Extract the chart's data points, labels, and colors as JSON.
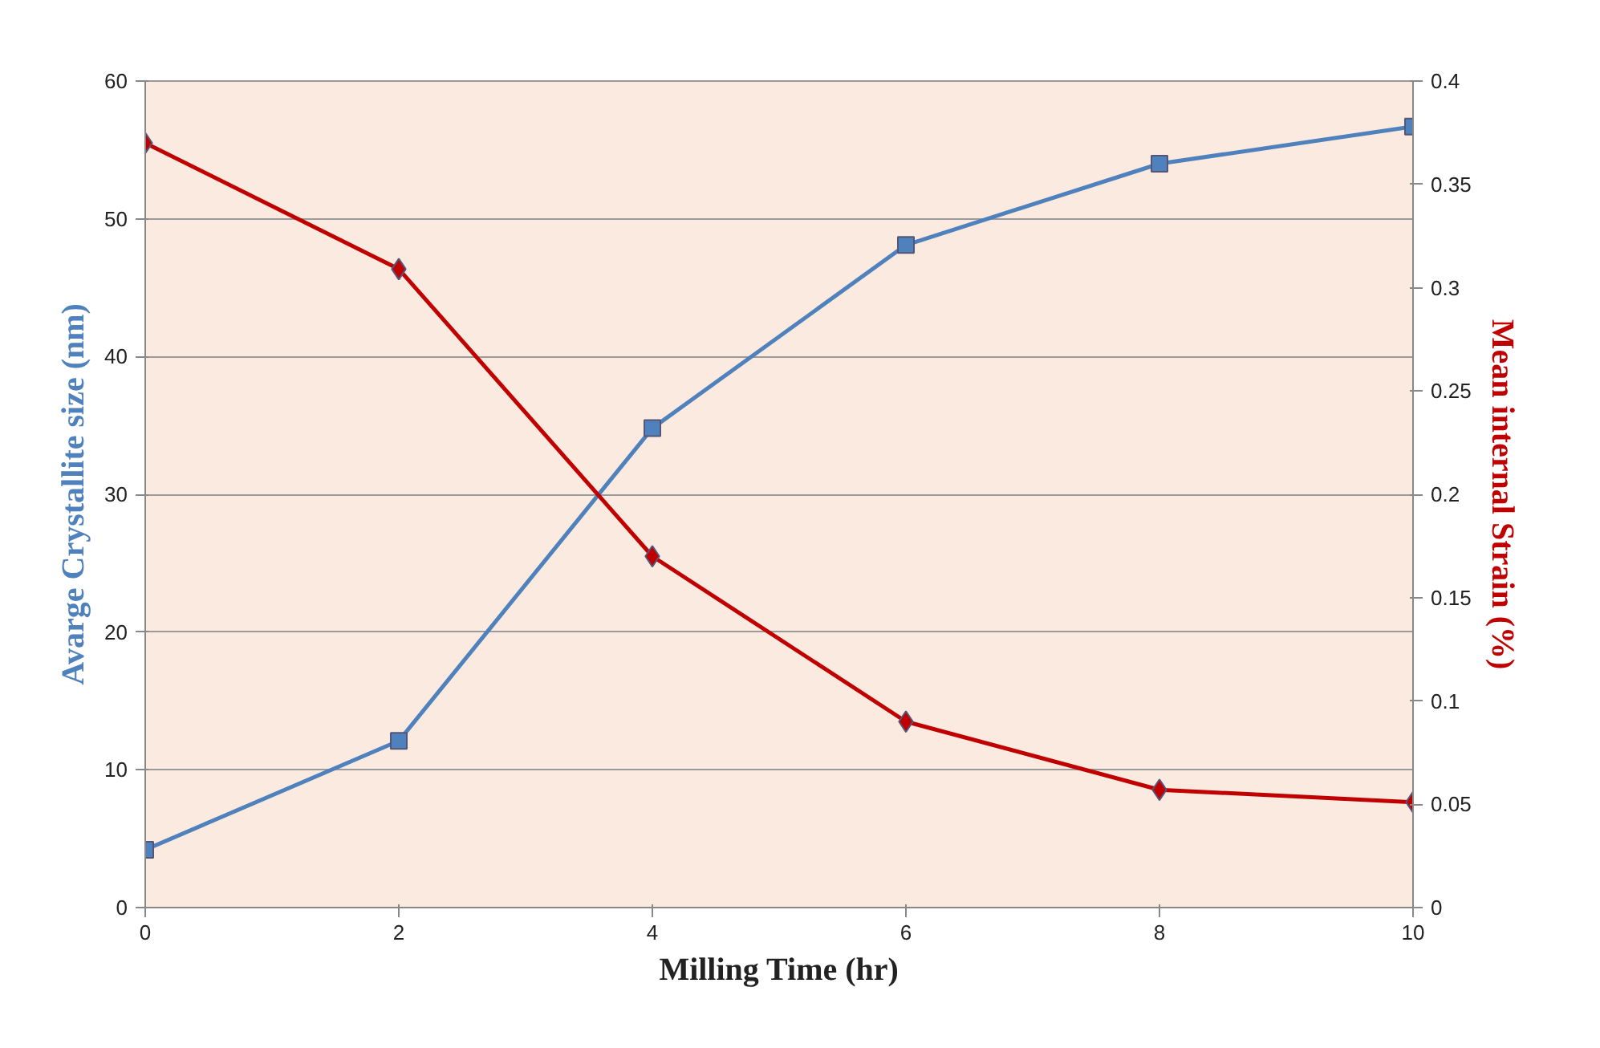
{
  "chart_data": {
    "type": "line",
    "xlabel": "Milling Time (hr)",
    "ylabel": "Avarge Crystallite size (nm)",
    "y2label": "Mean internal Strain (%)",
    "x": [
      0,
      2,
      4,
      6,
      8,
      10
    ],
    "series": [
      {
        "color": "#4f81bd",
        "marker": "square",
        "values": [
          4.2,
          12.1,
          34.8,
          48.1,
          54.0,
          56.7
        ]
      },
      {
        "color": "#c00000",
        "marker": "diamond",
        "axis": "y2",
        "values": [
          0.37,
          0.309,
          0.17,
          0.09,
          0.057,
          0.051
        ]
      }
    ],
    "xlim": [
      0,
      10
    ],
    "xticks": [
      0,
      2,
      4,
      6,
      8,
      10
    ],
    "ylim": [
      0,
      60
    ],
    "yticks": [
      0,
      10,
      20,
      30,
      40,
      50,
      60
    ],
    "y2lim": [
      0,
      0.4
    ],
    "y2ticks": [
      0,
      0.05,
      0.1,
      0.15,
      0.2,
      0.25,
      0.3,
      0.35,
      0.4
    ],
    "grid": "y",
    "line_style": "solid"
  }
}
